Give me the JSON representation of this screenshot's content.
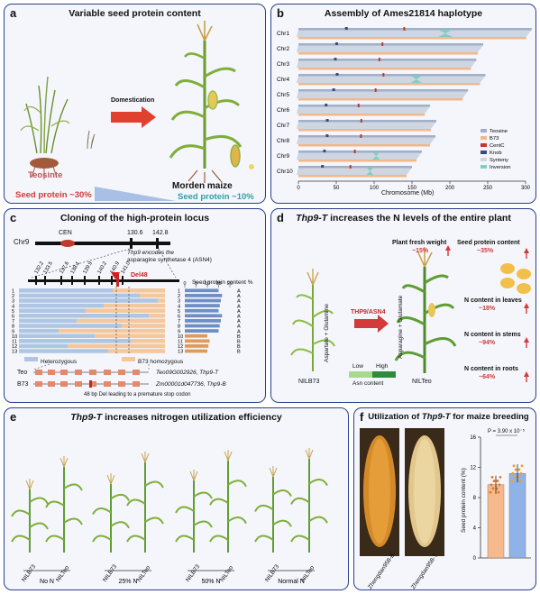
{
  "panel_a": {
    "letter": "a",
    "title": "Variable seed protein content",
    "teosinte": "Teosinte",
    "arrow": "Domestication",
    "maize": "Morden maize",
    "seed_teo": "Seed protein ~30%",
    "seed_maize": "Seed protein ~10%"
  },
  "panel_b": {
    "letter": "b",
    "title": "Assembly of Ames21814 haplotype",
    "chromosomes": [
      "Chr1",
      "Chr2",
      "Chr3",
      "Chr4",
      "Chr5",
      "Chr6",
      "Chr7",
      "Chr8",
      "Chr9",
      "Chr10"
    ],
    "xlabel": "Chromosome (Mb)",
    "ticks": [
      "0",
      "50",
      "100",
      "150",
      "200",
      "250",
      "300"
    ],
    "legend": [
      "Teosine",
      "B73",
      "CentC",
      "Knob",
      "Synteny",
      "Inversion"
    ],
    "colors": {
      "teosine": "#9fb0c8",
      "b73": "#f2b88a",
      "centc": "#c0392b",
      "knob": "#3c4a80",
      "synteny": "#cfd6e2",
      "inversion": "#7fcfc0"
    }
  },
  "panel_c": {
    "letter": "c",
    "title": "Cloning of the high-protein locus",
    "chr": "Chr9",
    "cen": "CEN",
    "pos_left": "130.6",
    "pos_right": "142.8",
    "note1": "Thp9 encodes the",
    "note2": "asparagine synthetase 4 (ASN4)",
    "markers": [
      "132.2",
      "133.5",
      "137.6",
      "138.1",
      "139.9",
      "140.2",
      "140.9",
      "141.0"
    ],
    "del": "Del48",
    "seed_header": "Seed protein content %",
    "seed_ticks": [
      "0",
      "5",
      "10",
      "15",
      "20"
    ],
    "rows": [
      "1",
      "2",
      "3",
      "4",
      "5",
      "6",
      "7",
      "8",
      "9",
      "10",
      "11",
      "12",
      "13"
    ],
    "groups": [
      "A",
      "A",
      "A",
      "A",
      "A",
      "A",
      "A",
      "A",
      "A",
      "B",
      "B",
      "B",
      "B"
    ],
    "legend_het": "Heterozygous",
    "legend_b73": "B73 homozygous",
    "teo": "Teo",
    "teo_gene": "Teo09G002926, Thp9-T",
    "b73": "B73",
    "b73_gene": "Zm00001d047736, Thp9-B",
    "del_note": "48 bp Del leading to a premature stop codon"
  },
  "panel_d": {
    "letter": "d",
    "title_italic": "Thp9-T",
    "title_rest": " increases the N levels of the entire plant",
    "side1": "Aspartate + Glutamine",
    "enzyme": "THP9/ASN4",
    "side2": "Asparagine + Glutamate",
    "nil1": "NILB73",
    "nil2": "NILTeo",
    "low": "Low",
    "high": "High",
    "asn": "Asn content",
    "fresh": "Plant fresh weight",
    "fresh_val": "~15%",
    "seedp": "Seed protein content",
    "seedp_val": "~35%",
    "leaves": "N content in leaves",
    "leaves_val": "~18%",
    "stems": "N content in stems",
    "stems_val": "~94%",
    "roots": "N content in roots",
    "roots_val": "~64%"
  },
  "panel_e": {
    "letter": "e",
    "title_italic": "Thp9-T",
    "title_rest": " increases nitrogen utilization efficiency",
    "plants": [
      "NILB73",
      "NILTeo",
      "NILB73",
      "NILTeo",
      "NILB73",
      "NILTeo",
      "NILB73",
      "NILTeo"
    ],
    "conditions": [
      "No N",
      "25% N",
      "50% N",
      "Normal N"
    ]
  },
  "panel_f": {
    "letter": "f",
    "title_pre": "Utilization of ",
    "title_italic": "Thp9-T",
    "title_post": " for maize breeding",
    "ear1": "Zhengdan958-B",
    "ear2": "Zhengdan958-T",
    "ylabel": "Seed protein content (%)",
    "pval": "P = 3.90 x 10⁻⁵",
    "yticks": [
      "0",
      "4",
      "8",
      "12",
      "16"
    ],
    "chart_data": {
      "type": "bar",
      "categories": [
        "Zhengdan958-B",
        "Zhengdan958-T"
      ],
      "values": [
        9.7,
        11.2
      ],
      "ylabel": "Seed protein content (%)",
      "ylim": [
        0,
        16
      ],
      "colors": [
        "#f6b98c",
        "#8fb3e8"
      ]
    }
  }
}
